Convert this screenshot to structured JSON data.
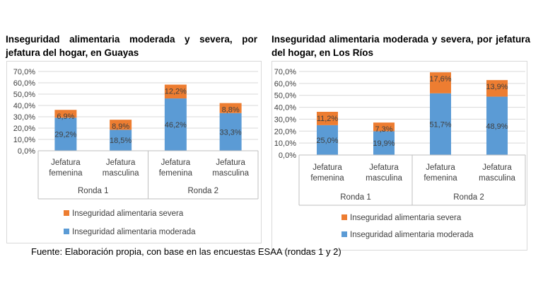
{
  "footer": "Fuente: Elaboración propia, con base en las encuestas ESAA (rondas 1 y 2)",
  "colors": {
    "moderada": "#5b9bd5",
    "severa": "#ed7d31",
    "grid": "#d9d9d9",
    "axis": "#bfbfbf"
  },
  "chart_data": [
    {
      "type": "bar",
      "stacked": true,
      "title": "Inseguridad alimentaria moderada y severa, por jefatura del hogar, en Guayas",
      "categories": [
        [
          "Jefatura",
          "femenina"
        ],
        [
          "Jefatura",
          "masculina"
        ],
        [
          "Jefatura",
          "femenina"
        ],
        [
          "Jefatura",
          "masculina"
        ]
      ],
      "groups": [
        {
          "label": "Ronda 1",
          "span": 2
        },
        {
          "label": "Ronda 2",
          "span": 2
        }
      ],
      "series": [
        {
          "name": "Inseguridad alimentaria moderada",
          "color": "#5b9bd5",
          "values": [
            29.2,
            18.5,
            46.2,
            33.3
          ],
          "labels": [
            "29,2%",
            "18,5%",
            "46,2%",
            "33,3%"
          ]
        },
        {
          "name": "Inseguridad alimentaria severa",
          "color": "#ed7d31",
          "values": [
            6.9,
            8.9,
            12.2,
            8.8
          ],
          "labels": [
            "6,9%",
            "8,9%",
            "12,2%",
            "8,8%"
          ]
        }
      ],
      "ylim": [
        0,
        70
      ],
      "yticks": [
        0,
        10,
        20,
        30,
        40,
        50,
        60,
        70
      ],
      "ytick_labels": [
        "0,0%",
        "10,0%",
        "20,0%",
        "30,0%",
        "40,0%",
        "50,0%",
        "60,0%",
        "70,0%"
      ],
      "legend_position": "bottom",
      "grid": true
    },
    {
      "type": "bar",
      "stacked": true,
      "title": "Inseguridad alimentaria moderada y severa, por jefatura del hogar, en Los Ríos",
      "categories": [
        [
          "Jefatura",
          "femenina"
        ],
        [
          "Jefatura",
          "masculina"
        ],
        [
          "Jefatura",
          "femenina"
        ],
        [
          "Jefatura",
          "masculina"
        ]
      ],
      "groups": [
        {
          "label": "Ronda 1",
          "span": 2
        },
        {
          "label": "Ronda 2",
          "span": 2
        }
      ],
      "series": [
        {
          "name": "Inseguridad alimentaria moderada",
          "color": "#5b9bd5",
          "values": [
            25.0,
            19.9,
            51.7,
            48.9
          ],
          "labels": [
            "25,0%",
            "19,9%",
            "51,7%",
            "48,9%"
          ]
        },
        {
          "name": "Inseguridad alimentaria severa",
          "color": "#ed7d31",
          "values": [
            11.2,
            7.3,
            17.6,
            13.9
          ],
          "labels": [
            "11,2%",
            "7,3%",
            "17,6%",
            "13,9%"
          ]
        }
      ],
      "ylim": [
        0,
        70
      ],
      "yticks": [
        0,
        10,
        20,
        30,
        40,
        50,
        60,
        70
      ],
      "ytick_labels": [
        "0,0%",
        "10,0%",
        "20,0%",
        "30,0%",
        "40,0%",
        "50,0%",
        "60,0%",
        "70,0%"
      ],
      "legend_position": "bottom",
      "grid": true
    }
  ]
}
